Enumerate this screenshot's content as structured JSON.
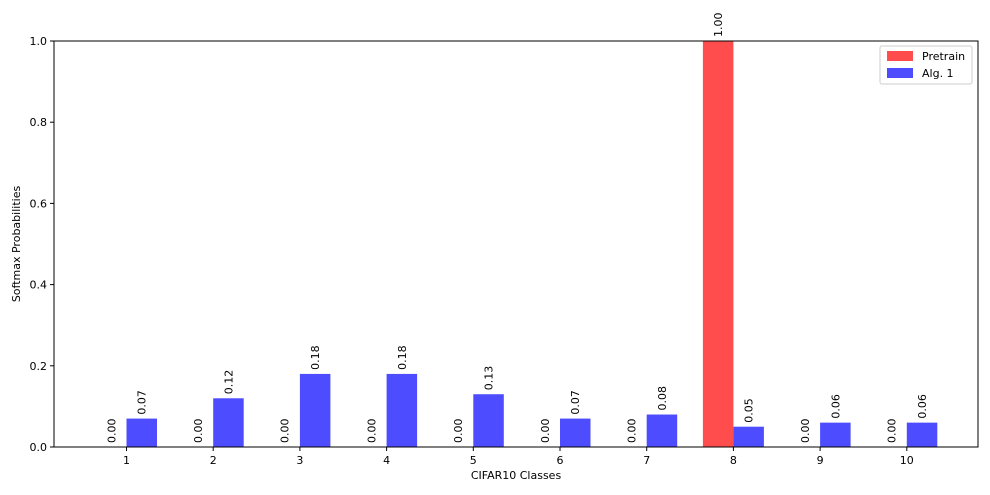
{
  "chart_data": {
    "type": "bar",
    "title": "",
    "xlabel": "CIFAR10 Classes",
    "ylabel": "Softmax Probabilities",
    "categories": [
      "1",
      "2",
      "3",
      "4",
      "5",
      "6",
      "7",
      "8",
      "9",
      "10"
    ],
    "ylim": [
      0,
      1.0
    ],
    "yticks": [
      "0.0",
      "0.2",
      "0.4",
      "0.6",
      "0.8",
      "1.0"
    ],
    "grid": false,
    "legend_position": "top-right",
    "series": [
      {
        "name": "Pretrain",
        "color": "#ff4d4d",
        "values": [
          0.0,
          0.0,
          0.0,
          0.0,
          0.0,
          0.0,
          0.0,
          1.0,
          0.0,
          0.0
        ],
        "labels": [
          "0.00",
          "0.00",
          "0.00",
          "0.00",
          "0.00",
          "0.00",
          "0.00",
          "1.00",
          "0.00",
          "0.00"
        ]
      },
      {
        "name": "Alg. 1",
        "color": "#4d4dff",
        "values": [
          0.07,
          0.12,
          0.18,
          0.18,
          0.13,
          0.07,
          0.08,
          0.05,
          0.06,
          0.06
        ],
        "labels": [
          "0.07",
          "0.12",
          "0.18",
          "0.18",
          "0.13",
          "0.07",
          "0.08",
          "0.05",
          "0.06",
          "0.06"
        ]
      }
    ]
  }
}
